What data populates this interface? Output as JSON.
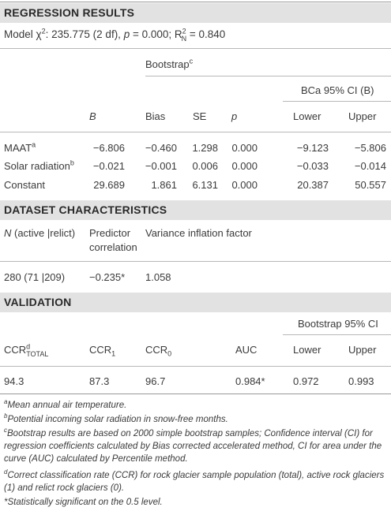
{
  "regression": {
    "title": "REGRESSION RESULTS",
    "model_pre": "Model χ",
    "model_sup": "2",
    "model_mid": ": 235.775 (2 df), ",
    "model_p": "p",
    "model_p_val": " = 0.000; R",
    "model_r_sup": "2",
    "model_r_sub": "N",
    "model_r_val": " = 0.840",
    "bootstrap_label": "Bootstrap",
    "bootstrap_sup": "c",
    "bca_label": "BCa 95% CI (B)",
    "col_B": "B",
    "col_bias": "Bias",
    "col_se": "SE",
    "col_p": "p",
    "col_lower": "Lower",
    "col_upper": "Upper",
    "rows": [
      {
        "name": "MAAT",
        "sup": "a",
        "B": "−6.806",
        "bias": "−0.460",
        "se": "1.298",
        "p": "0.000",
        "lower": "−9.123",
        "upper": "−5.806"
      },
      {
        "name": "Solar radiation",
        "sup": "b",
        "B": "−0.021",
        "bias": "−0.001",
        "se": "0.006",
        "p": "0.000",
        "lower": "−0.033",
        "upper": "−0.014"
      },
      {
        "name": "Constant",
        "sup": "",
        "B": "29.689",
        "bias": "1.861",
        "se": "6.131",
        "p": "0.000",
        "lower": "20.387",
        "upper": "50.557"
      }
    ]
  },
  "dataset": {
    "title": "DATASET CHARACTERISTICS",
    "col_n_italic": "N",
    "col_n_rest": " (active |relict)",
    "col_pred_1": "Predictor",
    "col_pred_2": "correlation",
    "col_vif": "Variance inflation factor",
    "n_value": "280 (71 |209)",
    "pred_value": "−0.235*",
    "vif_value": "1.058"
  },
  "validation": {
    "title": "VALIDATION",
    "bootstrap_ci": "Bootstrap 95% CI",
    "col_ccr": "CCR",
    "col_ccr_sup": "d",
    "col_ccr_sub": "TOTAL",
    "col_ccr1": "CCR",
    "col_ccr1_sub": "1",
    "col_ccr0": "CCR",
    "col_ccr0_sub": "0",
    "col_auc": "AUC",
    "col_lower": "Lower",
    "col_upper": "Upper",
    "ccr_total": "94.3",
    "ccr1": "87.3",
    "ccr0": "96.7",
    "auc": "0.984*",
    "lower": "0.972",
    "upper": "0.993"
  },
  "footnotes": {
    "a_mark": "a",
    "a_text": "Mean annual air temperature.",
    "b_mark": "b",
    "b_text": "Potential incoming solar radiation in snow-free months.",
    "c_mark": "c",
    "c_text": "Bootstrap results are based on 2000 simple bootstrap samples; Confidence interval (CI) for regression coefficients calculated by Bias corrected accelerated method, CI for area under the curve (AUC) calculated by Percentile method.",
    "d_mark": "d",
    "d_text": "Correct classification rate (CCR) for rock glacier sample population (total), active rock glaciers (1) and relict rock glaciers (0).",
    "star_text": "*Statistically significant on the 0.5 level."
  }
}
